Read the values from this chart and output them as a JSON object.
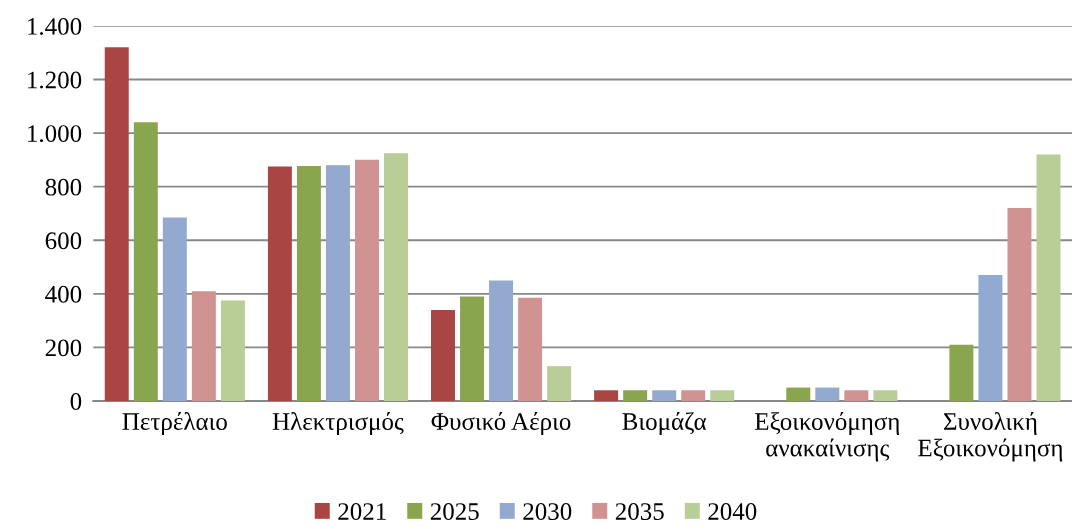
{
  "chart_data": {
    "type": "bar",
    "categories": [
      "Πετρέλαιο",
      "Ηλεκτρισμός",
      "Φυσικό Αέριο",
      "Βιομάζα",
      "Εξοικονόμηση\nανακαίνισης",
      "Συνολική\nΕξοικονόμηση"
    ],
    "series": [
      {
        "name": "2021",
        "color": "#a94643",
        "values": [
          1320,
          875,
          340,
          40,
          null,
          null
        ]
      },
      {
        "name": "2025",
        "color": "#89a54e",
        "values": [
          1040,
          877,
          390,
          40,
          50,
          210
        ]
      },
      {
        "name": "2030",
        "color": "#93a9cf",
        "values": [
          685,
          880,
          450,
          40,
          50,
          470
        ]
      },
      {
        "name": "2035",
        "color": "#d19392",
        "values": [
          410,
          900,
          385,
          40,
          40,
          720
        ]
      },
      {
        "name": "2040",
        "color": "#b9cd96",
        "values": [
          375,
          925,
          130,
          40,
          40,
          920
        ]
      }
    ],
    "ylim": [
      0,
      1400
    ],
    "yticks": [
      0,
      200,
      400,
      600,
      800,
      {
        "value": 1000,
        "label": "1.000"
      },
      {
        "value": 1200,
        "label": "1.200"
      },
      {
        "value": 1400,
        "label": "1.400"
      }
    ],
    "grid": "y",
    "legend": "bottom"
  }
}
